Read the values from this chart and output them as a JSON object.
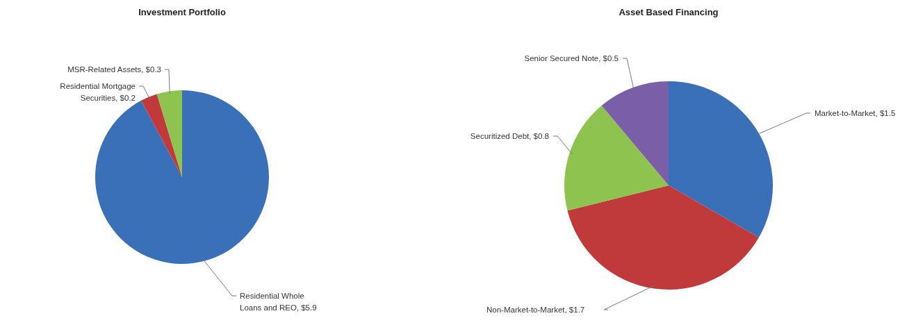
{
  "chart_data": [
    {
      "type": "pie",
      "title": "Investment Portfolio",
      "categories": [
        "Residential Whole Loans and REO",
        "Residential Mortgage Securities",
        "MSR-Related Assets"
      ],
      "values": [
        5.9,
        0.2,
        0.3
      ],
      "value_labels": [
        "$5.9",
        "$0.2",
        "$0.3"
      ],
      "colors": [
        "#3a70b8",
        "#c0393b",
        "#8fc34f"
      ]
    },
    {
      "type": "pie",
      "title": "Asset Based Financing",
      "categories": [
        "Market-to-Market",
        "Non-Market-to-Market",
        "Securitized Debt",
        "Senior Secured Note"
      ],
      "values": [
        1.5,
        1.7,
        0.8,
        0.5
      ],
      "value_labels": [
        "$1.5",
        "$1.7",
        "$0.8",
        "$0.5"
      ],
      "colors": [
        "#3a70b8",
        "#c0393b",
        "#8fc34f",
        "#7b5ea8"
      ]
    }
  ]
}
